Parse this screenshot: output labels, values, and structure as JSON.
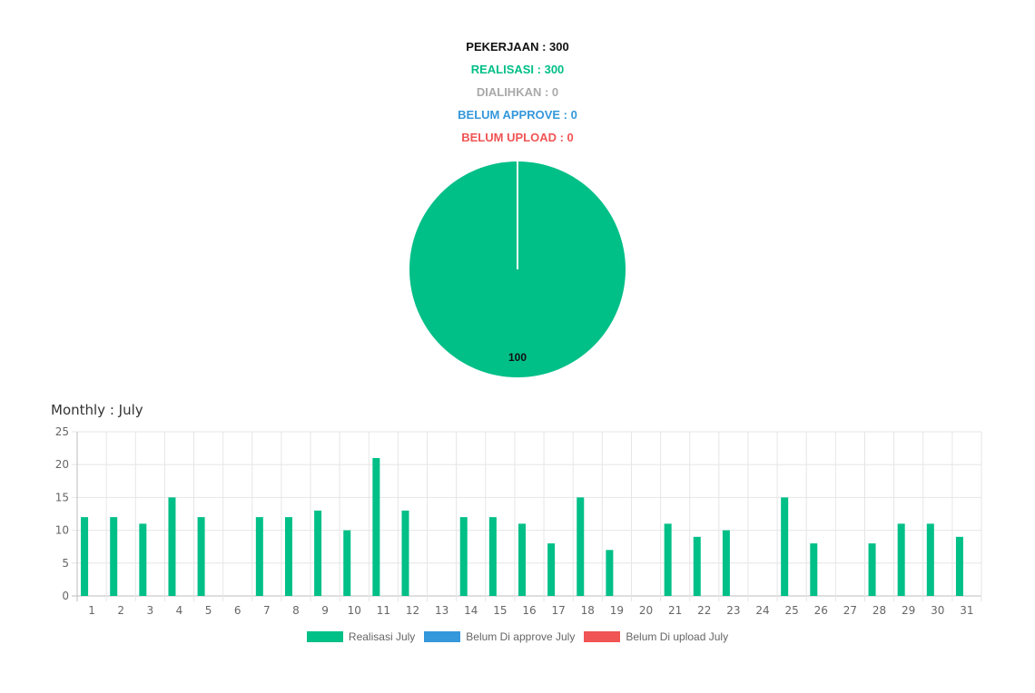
{
  "summary": {
    "pekerjaan": "PEKERJAAN : 300",
    "realisasi": "REALISASI : 300",
    "dialihkan": "DIALIHKAN : 0",
    "belum_approve": "BELUM APPROVE : 0",
    "belum_upload": "BELUM UPLOAD : 0"
  },
  "colors": {
    "realisasi": "#00bf87",
    "dialihkan": "#a9a9a9",
    "approve": "#3498db",
    "upload": "#f05454"
  },
  "monthly_title": "Monthly : July",
  "chart_data": [
    {
      "type": "pie",
      "slices": [
        {
          "value": 100,
          "color": "#00bf87",
          "label": "100"
        }
      ]
    },
    {
      "type": "bar",
      "categories": [
        "1",
        "2",
        "3",
        "4",
        "5",
        "6",
        "7",
        "8",
        "9",
        "10",
        "11",
        "12",
        "13",
        "14",
        "15",
        "16",
        "17",
        "18",
        "19",
        "20",
        "21",
        "22",
        "23",
        "24",
        "25",
        "26",
        "27",
        "28",
        "29",
        "30",
        "31"
      ],
      "series": [
        {
          "name": "Realisasi July",
          "color": "#00bf87",
          "values": [
            12,
            12,
            11,
            15,
            12,
            0,
            12,
            12,
            13,
            10,
            21,
            13,
            0,
            12,
            12,
            11,
            8,
            15,
            7,
            0,
            11,
            9,
            10,
            0,
            15,
            8,
            0,
            8,
            11,
            11,
            9
          ]
        },
        {
          "name": "Belum Di approve July",
          "color": "#3498db",
          "values": [
            0,
            0,
            0,
            0,
            0,
            0,
            0,
            0,
            0,
            0,
            0,
            0,
            0,
            0,
            0,
            0,
            0,
            0,
            0,
            0,
            0,
            0,
            0,
            0,
            0,
            0,
            0,
            0,
            0,
            0,
            0
          ]
        },
        {
          "name": "Belum Di upload July",
          "color": "#f05454",
          "values": [
            0,
            0,
            0,
            0,
            0,
            0,
            0,
            0,
            0,
            0,
            0,
            0,
            0,
            0,
            0,
            0,
            0,
            0,
            0,
            0,
            0,
            0,
            0,
            0,
            0,
            0,
            0,
            0,
            0,
            0,
            0
          ]
        }
      ],
      "ylim": [
        0,
        25
      ],
      "yticks": [
        "0",
        "5",
        "10",
        "15",
        "20",
        "25"
      ],
      "grid": true,
      "legend_position": "bottom"
    }
  ]
}
